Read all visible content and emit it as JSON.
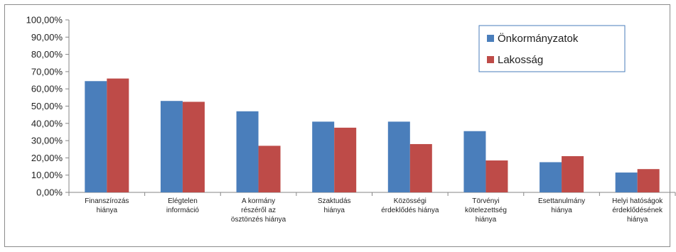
{
  "chart_data": {
    "type": "bar",
    "categories": [
      [
        "Finanszírozás",
        "hiánya"
      ],
      [
        "Elégtelen",
        "információ"
      ],
      [
        "A kormány",
        "részéről az",
        "ösztönzés hiánya"
      ],
      [
        "Szaktudás",
        "hiánya"
      ],
      [
        "Közösségi",
        "érdeklődés hiánya"
      ],
      [
        "Törvényi",
        "kötelezettség",
        "hiánya"
      ],
      [
        "Esettanulmány",
        "hiánya"
      ],
      [
        "Helyi hatóságok",
        "érdeklődésének",
        "hiánya"
      ]
    ],
    "series": [
      {
        "name": "Önkormányzatok",
        "color": "#4a7ebb",
        "values": [
          64.5,
          53.0,
          47.0,
          41.0,
          41.0,
          35.5,
          17.5,
          11.5
        ]
      },
      {
        "name": "Lakosság",
        "color": "#be4b48",
        "values": [
          66.0,
          52.5,
          27.0,
          37.5,
          28.0,
          18.5,
          21.0,
          13.5
        ]
      }
    ],
    "yticks": [
      "0,00%",
      "10,00%",
      "20,00%",
      "30,00%",
      "40,00%",
      "50,00%",
      "60,00%",
      "70,00%",
      "80,00%",
      "90,00%",
      "100,00%"
    ],
    "ylim": [
      0,
      100
    ],
    "legend_position": "top-right",
    "grid": false
  }
}
